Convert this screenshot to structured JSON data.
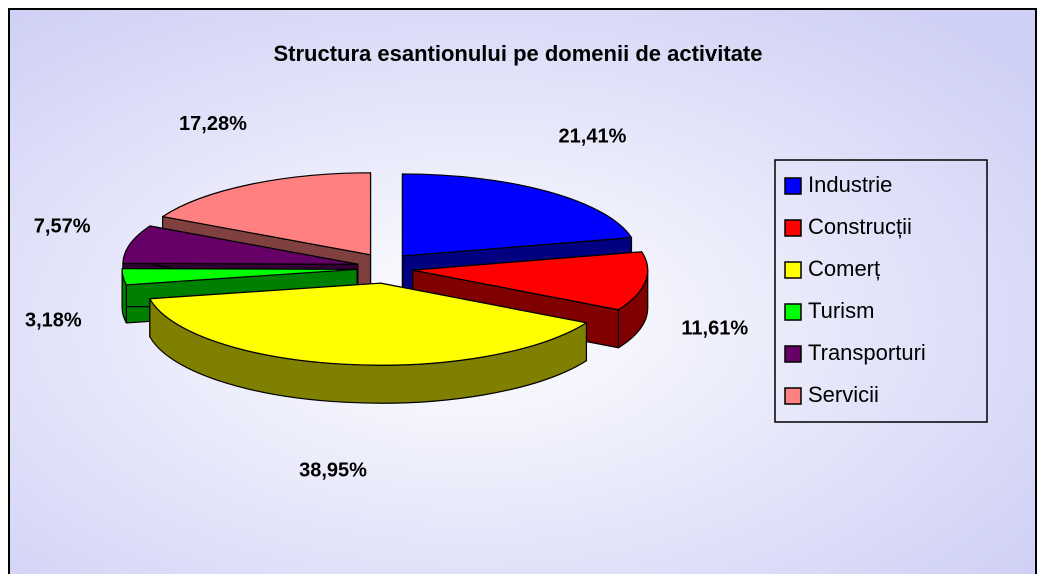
{
  "chart_data": {
    "type": "pie",
    "title": "Structura esantionului pe domenii de activitate",
    "categories": [
      "Industrie",
      "Construcții",
      "Comerț",
      "Turism",
      "Transporturi",
      "Servicii"
    ],
    "values": [
      21.41,
      11.61,
      38.95,
      3.18,
      7.57,
      17.28
    ],
    "value_labels": [
      "21,41%",
      "11,61%",
      "38,95%",
      "3,18%",
      "7,57%",
      "17,28%"
    ],
    "colors": [
      "#0000ff",
      "#ff0000",
      "#ffff00",
      "#00ff00",
      "#660066",
      "#ff8080"
    ],
    "legend": "right"
  }
}
